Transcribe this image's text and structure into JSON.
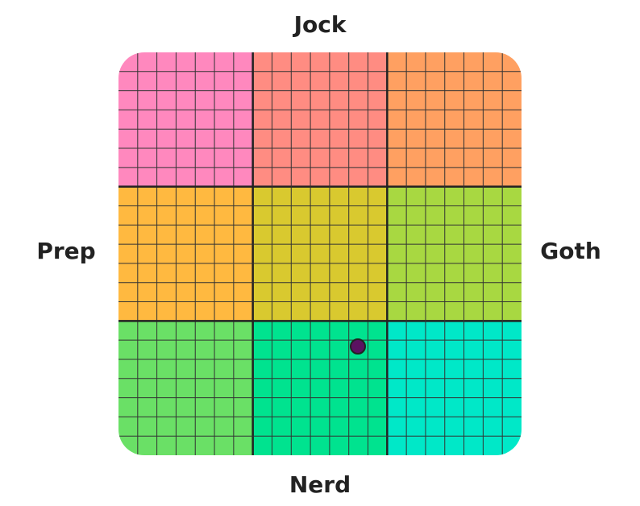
{
  "chart_data": {
    "type": "scatter",
    "top_label": "Jock",
    "bottom_label": "Nerd",
    "left_label": "Prep",
    "right_label": "Goth",
    "xlim": [
      -10,
      10
    ],
    "ylim": [
      -10,
      10
    ],
    "region_colors": [
      "#ff88be",
      "#ff8c82",
      "#ffa061",
      "#ffb940",
      "#d9c92f",
      "#a8d841",
      "#6ae066",
      "#00e38f",
      "#00e8c8"
    ],
    "series": [
      {
        "color": "#5b1261",
        "x": [
          1.88
        ],
        "values": [
          -4.6
        ]
      }
    ]
  }
}
